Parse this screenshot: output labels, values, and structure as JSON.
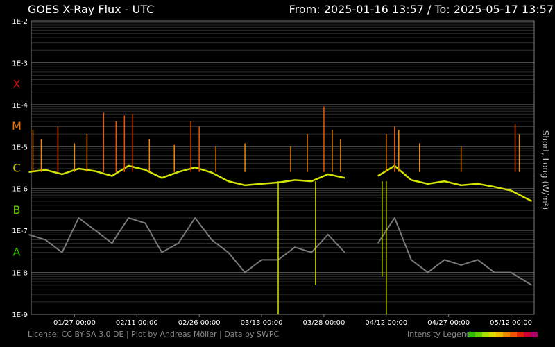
{
  "header": {
    "title": "GOES X-Ray Flux - UTC",
    "range": "From: 2025-01-16 13:57  /  To: 2025-05-17 13:57"
  },
  "footer": {
    "credits": "License: CC BY-SA 3.0 DE | Plot by Andreas Möller | Data by SWPC",
    "legend_label": "Intensity Legend",
    "legend_colors": [
      "#33bb00",
      "#66cc00",
      "#aadd00",
      "#dddd00",
      "#eebb00",
      "#ee8800",
      "#ee5500",
      "#dd2200",
      "#cc0033",
      "#aa0066"
    ]
  },
  "chart_data": {
    "type": "line",
    "title": "GOES X-Ray Flux - UTC",
    "ylabel": "Short, Long (W/m²)",
    "yscale": "log",
    "ylim": [
      1e-09,
      0.01
    ],
    "xlim": [
      "2025-01-16 13:57",
      "2025-05-17 13:57"
    ],
    "y_ticks": [
      "1E-9",
      "1E-8",
      "1E-7",
      "1E-6",
      "1E-5",
      "1E-4",
      "1E-3",
      "1E-2"
    ],
    "flare_classes": [
      {
        "label": "A",
        "value": 3.16e-08,
        "color": "#33bb00"
      },
      {
        "label": "B",
        "value": 3.16e-07,
        "color": "#66cc00"
      },
      {
        "label": "C",
        "value": 3.16e-06,
        "color": "#cccc00"
      },
      {
        "label": "M",
        "value": 3.16e-05,
        "color": "#ee7700"
      },
      {
        "label": "X",
        "value": 0.000316,
        "color": "#dd1111"
      }
    ],
    "x_ticks": [
      {
        "date": "2025-01-27",
        "label": "01/27 00:00"
      },
      {
        "date": "2025-02-11",
        "label": "02/11 00:00"
      },
      {
        "date": "2025-02-26",
        "label": "02/26 00:00"
      },
      {
        "date": "2025-03-13",
        "label": "03/13 00:00"
      },
      {
        "date": "2025-03-28",
        "label": "03/28 00:00"
      },
      {
        "date": "2025-04-12",
        "label": "04/12 00:00"
      },
      {
        "date": "2025-04-27",
        "label": "04/27 00:00"
      },
      {
        "date": "2025-05-12",
        "label": "05/12 00:00"
      }
    ],
    "grid": true,
    "series": [
      {
        "name": "Long",
        "color": "#d4e600",
        "x": [
          "2025-01-16",
          "2025-01-20",
          "2025-01-24",
          "2025-01-28",
          "2025-02-01",
          "2025-02-05",
          "2025-02-09",
          "2025-02-13",
          "2025-02-17",
          "2025-02-21",
          "2025-02-25",
          "2025-03-01",
          "2025-03-05",
          "2025-03-09",
          "2025-03-13",
          "2025-03-17",
          "2025-03-21",
          "2025-03-25",
          "2025-03-29",
          "2025-04-02",
          "2025-04-06",
          "2025-04-10",
          "2025-04-14",
          "2025-04-18",
          "2025-04-22",
          "2025-04-26",
          "2025-04-30",
          "2025-05-04",
          "2025-05-08",
          "2025-05-12",
          "2025-05-17"
        ],
        "y": [
          2.5e-06,
          2.8e-06,
          2.2e-06,
          3e-06,
          2.6e-06,
          2e-06,
          3.5e-06,
          2.8e-06,
          1.8e-06,
          2.5e-06,
          3.2e-06,
          2.4e-06,
          1.5e-06,
          1.2e-06,
          1.3e-06,
          1.4e-06,
          1.6e-06,
          1.5e-06,
          2.2e-06,
          1.8e-06,
          null,
          2e-06,
          3.5e-06,
          1.6e-06,
          1.3e-06,
          1.5e-06,
          1.2e-06,
          1.3e-06,
          1.1e-06,
          9e-07,
          5e-07
        ]
      },
      {
        "name": "Short",
        "color": "#7a7a7a",
        "x": [
          "2025-01-16",
          "2025-01-20",
          "2025-01-24",
          "2025-01-28",
          "2025-02-01",
          "2025-02-05",
          "2025-02-09",
          "2025-02-13",
          "2025-02-17",
          "2025-02-21",
          "2025-02-25",
          "2025-03-01",
          "2025-03-05",
          "2025-03-09",
          "2025-03-13",
          "2025-03-17",
          "2025-03-21",
          "2025-03-25",
          "2025-03-29",
          "2025-04-02",
          "2025-04-06",
          "2025-04-10",
          "2025-04-14",
          "2025-04-18",
          "2025-04-22",
          "2025-04-26",
          "2025-04-30",
          "2025-05-04",
          "2025-05-08",
          "2025-05-12",
          "2025-05-17"
        ],
        "y": [
          8e-08,
          6e-08,
          3e-08,
          2e-07,
          1e-07,
          5e-08,
          2e-07,
          1.5e-07,
          3e-08,
          5e-08,
          2e-07,
          6e-08,
          3e-08,
          1e-08,
          2e-08,
          2e-08,
          4e-08,
          3e-08,
          8e-08,
          3e-08,
          null,
          5e-08,
          2e-07,
          2e-08,
          1e-08,
          2e-08,
          1.5e-08,
          2e-08,
          1e-08,
          1e-08,
          5e-09
        ]
      }
    ],
    "spikes": [
      {
        "x": "2025-01-17",
        "y": 2.5e-05
      },
      {
        "x": "2025-01-19",
        "y": 1.5e-05
      },
      {
        "x": "2025-01-23",
        "y": 3e-05
      },
      {
        "x": "2025-01-27",
        "y": 1.2e-05
      },
      {
        "x": "2025-01-30",
        "y": 2e-05
      },
      {
        "x": "2025-02-03",
        "y": 6.5e-05
      },
      {
        "x": "2025-02-06",
        "y": 4e-05
      },
      {
        "x": "2025-02-08",
        "y": 5.5e-05
      },
      {
        "x": "2025-02-10",
        "y": 6e-05
      },
      {
        "x": "2025-02-14",
        "y": 1.5e-05
      },
      {
        "x": "2025-02-20",
        "y": 1.1e-05
      },
      {
        "x": "2025-02-24",
        "y": 4e-05
      },
      {
        "x": "2025-02-26",
        "y": 3e-05
      },
      {
        "x": "2025-03-02",
        "y": 1e-05
      },
      {
        "x": "2025-03-09",
        "y": 1.2e-05
      },
      {
        "x": "2025-03-20",
        "y": 1e-05
      },
      {
        "x": "2025-03-24",
        "y": 2e-05
      },
      {
        "x": "2025-03-28",
        "y": 9e-05
      },
      {
        "x": "2025-03-30",
        "y": 2.5e-05
      },
      {
        "x": "2025-04-01",
        "y": 1.5e-05
      },
      {
        "x": "2025-04-12",
        "y": 2e-05
      },
      {
        "x": "2025-04-14",
        "y": 3e-05
      },
      {
        "x": "2025-04-15",
        "y": 2.5e-05
      },
      {
        "x": "2025-04-20",
        "y": 1.2e-05
      },
      {
        "x": "2025-04-30",
        "y": 1e-05
      },
      {
        "x": "2025-05-13",
        "y": 3.5e-05
      },
      {
        "x": "2025-05-14",
        "y": 2e-05
      }
    ],
    "dropouts": [
      {
        "x": "2025-03-17",
        "y": 1e-09
      },
      {
        "x": "2025-03-26",
        "y": 5e-09
      },
      {
        "x": "2025-04-11",
        "y": 8e-09
      },
      {
        "x": "2025-04-12",
        "y": 1e-09
      }
    ]
  }
}
